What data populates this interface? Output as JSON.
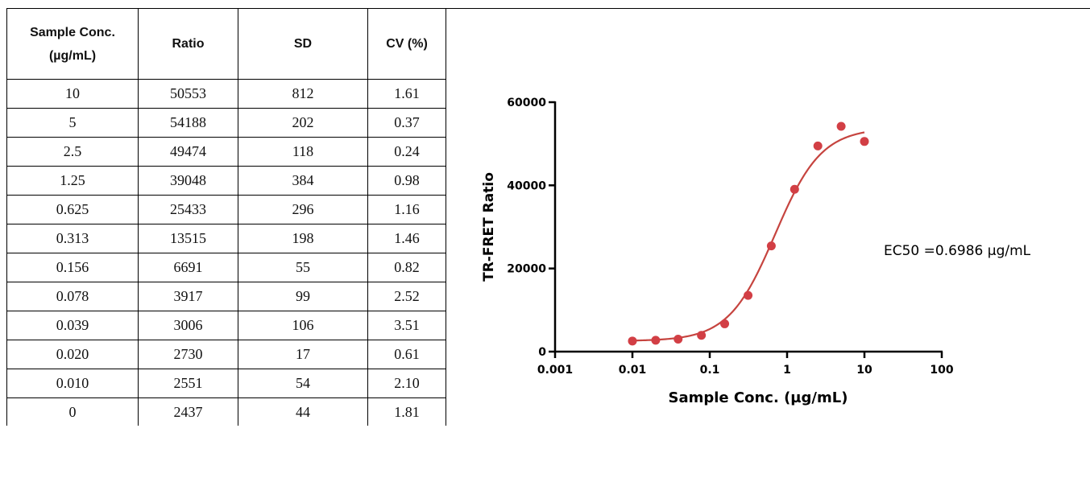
{
  "table": {
    "headers": [
      {
        "line1": "Sample Conc.",
        "line2": "(µg/mL)"
      },
      {
        "line1": "Ratio",
        "line2": ""
      },
      {
        "line1": "SD",
        "line2": ""
      },
      {
        "line1": "CV (%)",
        "line2": ""
      }
    ],
    "rows": [
      [
        "10",
        "50553",
        "812",
        "1.61"
      ],
      [
        "5",
        "54188",
        "202",
        "0.37"
      ],
      [
        "2.5",
        "49474",
        "118",
        "0.24"
      ],
      [
        "1.25",
        "39048",
        "384",
        "0.98"
      ],
      [
        "0.625",
        "25433",
        "296",
        "1.16"
      ],
      [
        "0.313",
        "13515",
        "198",
        "1.46"
      ],
      [
        "0.156",
        "6691",
        "55",
        "0.82"
      ],
      [
        "0.078",
        "3917",
        "99",
        "2.52"
      ],
      [
        "0.039",
        "3006",
        "106",
        "3.51"
      ],
      [
        "0.020",
        "2730",
        "17",
        "0.61"
      ],
      [
        "0.010",
        "2551",
        "54",
        "2.10"
      ],
      [
        "0",
        "2437",
        "44",
        "1.81"
      ]
    ]
  },
  "chart_data": {
    "type": "scatter",
    "title": "",
    "xlabel": "Sample Conc. (µg/mL)",
    "ylabel": "TR-FRET Ratio",
    "x_scale": "log",
    "xlim": [
      0.001,
      100
    ],
    "ylim": [
      0,
      60000
    ],
    "x_ticks": [
      "0.001",
      "0.01",
      "0.1",
      "1",
      "10",
      "100"
    ],
    "y_ticks": [
      "0",
      "20000",
      "40000",
      "60000"
    ],
    "grid": false,
    "points": [
      {
        "x": 10,
        "y": 50553
      },
      {
        "x": 5,
        "y": 54188
      },
      {
        "x": 2.5,
        "y": 49474
      },
      {
        "x": 1.25,
        "y": 39048
      },
      {
        "x": 0.625,
        "y": 25433
      },
      {
        "x": 0.313,
        "y": 13515
      },
      {
        "x": 0.156,
        "y": 6691
      },
      {
        "x": 0.078,
        "y": 3917
      },
      {
        "x": 0.039,
        "y": 3006
      },
      {
        "x": 0.02,
        "y": 2730
      },
      {
        "x": 0.01,
        "y": 2551
      }
    ],
    "fit": {
      "model": "4PL",
      "bottom": 2550,
      "top": 53800,
      "ec50": 0.6986,
      "hill": 1.45
    },
    "annotation": "EC50 =0.6986 µg/mL",
    "colors": {
      "points": "#d23f45",
      "curve": "#c6443f",
      "axes": "#000000"
    }
  }
}
